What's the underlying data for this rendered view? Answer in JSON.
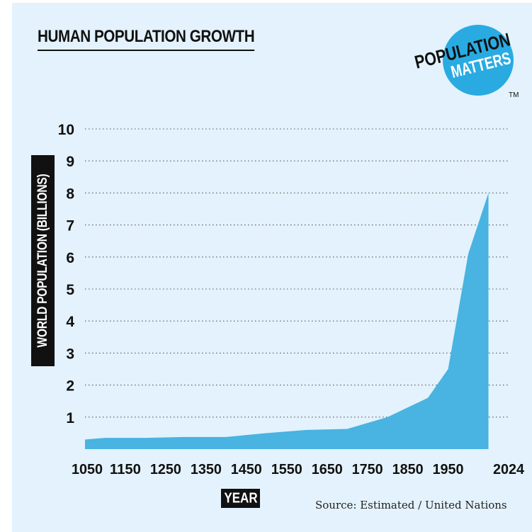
{
  "title": "HUMAN POPULATION GROWTH",
  "logo": {
    "line1": "POPULATION",
    "line2": "MATTERS",
    "trademark": "TM",
    "circle_color": "#29abe2"
  },
  "source": "Source: Estimated / United Nations",
  "colors": {
    "background": "#e3f2fc",
    "area": "#49b3e1",
    "text": "#111111",
    "grid": "#555555"
  },
  "chart_data": {
    "type": "area",
    "title": "HUMAN POPULATION GROWTH",
    "xlabel": "YEAR",
    "ylabel": "WORLD POPULATION (BILLIONS)",
    "x_tick_labels": [
      "1050",
      "1150",
      "1250",
      "1350",
      "1450",
      "1550",
      "1650",
      "1750",
      "1850",
      "1950",
      "2024"
    ],
    "y_tick_labels": [
      "1",
      "2",
      "3",
      "4",
      "5",
      "6",
      "7",
      "8",
      "9",
      "10"
    ],
    "xlim": [
      1050,
      2100
    ],
    "ylim": [
      0,
      10
    ],
    "grid": "horizontal dotted",
    "x": [
      1050,
      1100,
      1200,
      1300,
      1400,
      1500,
      1600,
      1700,
      1800,
      1900,
      1950,
      2000,
      2050
    ],
    "y": [
      0.3,
      0.35,
      0.35,
      0.38,
      0.38,
      0.5,
      0.6,
      0.63,
      1.0,
      1.6,
      2.5,
      6.1,
      8.0
    ]
  }
}
